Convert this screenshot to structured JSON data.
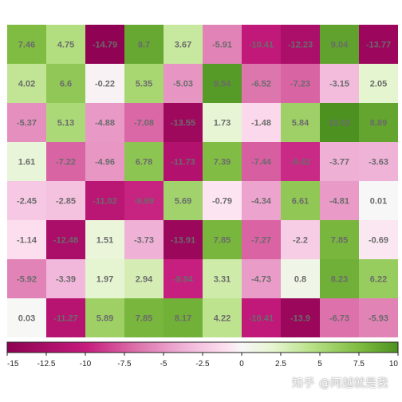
{
  "chart_data": {
    "type": "heatmap",
    "rows": 8,
    "cols": 10,
    "values": [
      [
        7.46,
        4.75,
        -14.79,
        8.7,
        3.67,
        -5.91,
        -10.41,
        -12.23,
        9.04,
        -13.77
      ],
      [
        4.02,
        6.6,
        -0.22,
        5.35,
        -5.03,
        9.54,
        -6.52,
        -7.23,
        -3.15,
        2.05
      ],
      [
        -5.37,
        5.13,
        -4.88,
        -7.08,
        -13.55,
        1.73,
        -1.48,
        5.84,
        10.02,
        8.89
      ],
      [
        1.61,
        -7.22,
        -4.96,
        6.78,
        -11.73,
        7.39,
        -7.44,
        -9.42,
        -3.77,
        -3.63
      ],
      [
        -2.45,
        -2.85,
        -11.02,
        -9.69,
        5.69,
        -0.79,
        -4.34,
        6.61,
        -4.81,
        0.01
      ],
      [
        -1.14,
        -12.48,
        1.51,
        -3.73,
        -13.91,
        7.85,
        -7.27,
        -2.2,
        7.85,
        -0.69
      ],
      [
        -5.92,
        -3.39,
        1.97,
        2.94,
        -9.84,
        3.31,
        -4.73,
        0.8,
        8.23,
        6.22
      ],
      [
        0.03,
        -11.27,
        5.89,
        7.85,
        8.17,
        4.22,
        -10.41,
        -13.9,
        -6.73,
        -5.93
      ]
    ],
    "labels": [
      [
        "7.46",
        "4.75",
        "-14.79",
        "8.7",
        "3.67",
        "-5.91",
        "-10.41",
        "-12.23",
        "9.04",
        "-13.77"
      ],
      [
        "4.02",
        "6.6",
        "-0.22",
        "5.35",
        "-5.03",
        "9.54",
        "-6.52",
        "-7.23",
        "-3.15",
        "2.05"
      ],
      [
        "-5.37",
        "5.13",
        "-4.88",
        "-7.08",
        "-13.55",
        "1.73",
        "-1.48",
        "5.84",
        "10.02",
        "8.89"
      ],
      [
        "1.61",
        "-7.22",
        "-4.96",
        "6.78",
        "-11.73",
        "7.39",
        "-7.44",
        "-9.42",
        "-3.77",
        "-3.63"
      ],
      [
        "-2.45",
        "-2.85",
        "-11.02",
        "-9.69",
        "5.69",
        "-0.79",
        "-4.34",
        "6.61",
        "-4.81",
        "0.01"
      ],
      [
        "-1.14",
        "-12.48",
        "1.51",
        "-3.73",
        "-13.91",
        "7.85",
        "-7.27",
        "-2.2",
        "7.85",
        "-0.69"
      ],
      [
        "-5.92",
        "-3.39",
        "1.97",
        "2.94",
        "-9.84",
        "3.31",
        "-4.73",
        "0.8",
        "8.23",
        "6.22"
      ],
      [
        "0.03",
        "-11.27",
        "5.89",
        "7.85",
        "8.17",
        "4.22",
        "-10.41",
        "-13.9",
        "-6.73",
        "-5.93"
      ]
    ],
    "color_scale": {
      "min": -15,
      "max": 10,
      "stops": [
        {
          "value": -15,
          "color": "#8e0152"
        },
        {
          "value": -10,
          "color": "#c51b7d"
        },
        {
          "value": -6.5,
          "color": "#de77ae"
        },
        {
          "value": -3.5,
          "color": "#f1b6da"
        },
        {
          "value": -1,
          "color": "#fde0ef"
        },
        {
          "value": 0,
          "color": "#f7f7f7"
        },
        {
          "value": 2,
          "color": "#e6f5d0"
        },
        {
          "value": 4.5,
          "color": "#b8e186"
        },
        {
          "value": 7.5,
          "color": "#7fbc41"
        },
        {
          "value": 10,
          "color": "#4d9221"
        }
      ]
    },
    "colorbar": {
      "placement": "bottom",
      "ticks": [
        -15,
        -12.5,
        -10,
        -7.5,
        -5,
        -2.5,
        0,
        2.5,
        5,
        7.5,
        10
      ],
      "tick_labels": [
        "-15",
        "-12.5",
        "-10",
        "-7.5",
        "-5",
        "-2.5",
        "0",
        "2.5",
        "5",
        "7.5",
        "10"
      ]
    },
    "title": "",
    "xlabel": "",
    "ylabel": ""
  },
  "watermark": "知乎 @阿越就是我"
}
